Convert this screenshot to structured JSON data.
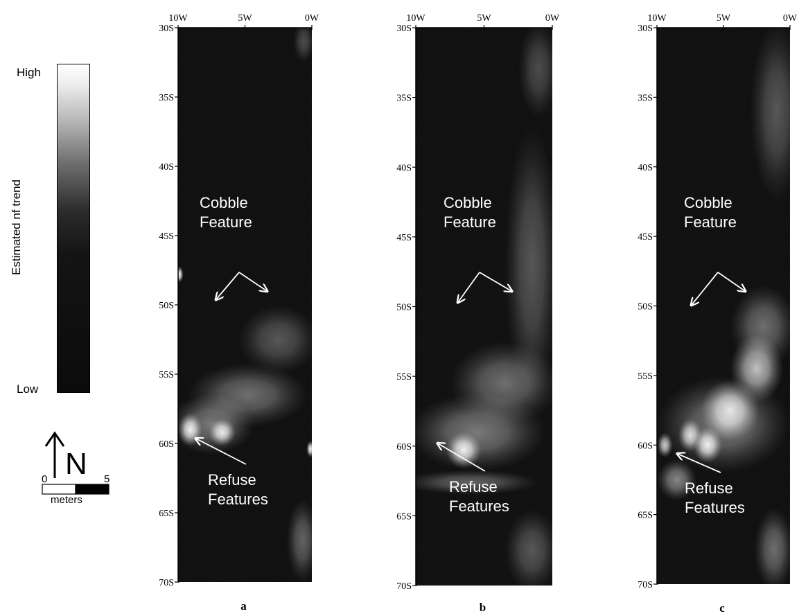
{
  "legend": {
    "high_label": "High",
    "low_label": "Low",
    "ramp_title": "Estimated nf trend",
    "ramp_colors": [
      "#ffffff",
      "#bdbdbd",
      "#6f6f6f",
      "#2b2b2b",
      "#0b0b0b"
    ],
    "north_label": "N",
    "north_icon": "north-arrow-icon",
    "scale_start": "0",
    "scale_end": "5",
    "scale_unit": "meters"
  },
  "axes": {
    "x_ticks": [
      "10W",
      "5W",
      "0W"
    ],
    "y_ticks": [
      "30S",
      "35S",
      "40S",
      "45S",
      "50S",
      "55S",
      "60S",
      "65S",
      "70S"
    ]
  },
  "panels": [
    {
      "letter": "a",
      "cobble_label": [
        "Cobble",
        "Feature"
      ],
      "refuse_label": [
        "Refuse",
        "Features"
      ],
      "bright_spots": [
        {
          "e": -9.1,
          "s": 59.0,
          "re": 0.9,
          "rs": 1.2,
          "o": 1.0
        },
        {
          "e": -6.7,
          "s": 59.2,
          "re": 1.0,
          "rs": 1.0,
          "o": 0.95
        },
        {
          "e": -7.5,
          "s": 58.6,
          "re": 3.2,
          "rs": 2.2,
          "o": 0.45
        },
        {
          "e": -4.8,
          "s": 56.5,
          "re": 4.5,
          "rs": 2.3,
          "o": 0.4
        },
        {
          "e": -2.5,
          "s": 52.5,
          "re": 3.0,
          "rs": 2.5,
          "o": 0.3
        },
        {
          "e": -9.9,
          "s": 47.8,
          "re": 0.3,
          "rs": 0.6,
          "o": 1.0
        },
        {
          "e": -0.1,
          "s": 60.4,
          "re": 0.3,
          "rs": 0.6,
          "o": 1.0
        },
        {
          "e": -0.7,
          "s": 67.0,
          "re": 1.2,
          "rs": 3.0,
          "o": 0.35
        },
        {
          "e": -0.6,
          "s": 31.0,
          "re": 0.8,
          "rs": 1.5,
          "o": 0.25
        }
      ]
    },
    {
      "letter": "b",
      "cobble_label": [
        "Cobble",
        "Feature"
      ],
      "refuse_label": [
        "Refuse",
        "Features"
      ],
      "bright_spots": [
        {
          "e": -6.5,
          "s": 60.3,
          "re": 1.3,
          "rs": 1.3,
          "o": 1.0
        },
        {
          "e": -5.5,
          "s": 59.0,
          "re": 5.0,
          "rs": 2.8,
          "o": 0.45
        },
        {
          "e": -3.5,
          "s": 55.5,
          "re": 4.0,
          "rs": 3.0,
          "o": 0.4
        },
        {
          "e": -1.5,
          "s": 47.0,
          "re": 2.0,
          "rs": 10.0,
          "o": 0.3
        },
        {
          "e": -6.0,
          "s": 62.6,
          "re": 5.0,
          "rs": 0.9,
          "o": 0.35
        },
        {
          "e": -1.0,
          "s": 33.0,
          "re": 1.5,
          "rs": 3.5,
          "o": 0.25
        },
        {
          "e": -1.5,
          "s": 67.5,
          "re": 2.0,
          "rs": 3.0,
          "o": 0.3
        }
      ]
    },
    {
      "letter": "c",
      "cobble_label": [
        "Cobble",
        "Feature"
      ],
      "refuse_label": [
        "Refuse",
        "Features"
      ],
      "bright_spots": [
        {
          "e": -7.5,
          "s": 59.3,
          "re": 0.9,
          "rs": 1.2,
          "o": 0.9
        },
        {
          "e": -6.2,
          "s": 60.0,
          "re": 1.1,
          "rs": 1.3,
          "o": 1.0
        },
        {
          "e": -9.4,
          "s": 60.0,
          "re": 0.6,
          "rs": 0.9,
          "o": 0.8
        },
        {
          "e": -4.5,
          "s": 57.5,
          "re": 2.2,
          "rs": 2.2,
          "o": 0.9
        },
        {
          "e": -2.5,
          "s": 54.5,
          "re": 2.0,
          "rs": 2.5,
          "o": 0.75
        },
        {
          "e": -5.0,
          "s": 58.5,
          "re": 5.0,
          "rs": 3.5,
          "o": 0.45
        },
        {
          "e": -2.0,
          "s": 51.5,
          "re": 2.5,
          "rs": 3.0,
          "o": 0.4
        },
        {
          "e": -1.0,
          "s": 36.0,
          "re": 2.0,
          "rs": 6.5,
          "o": 0.3
        },
        {
          "e": -8.5,
          "s": 62.5,
          "re": 1.5,
          "rs": 1.5,
          "o": 0.5
        },
        {
          "e": -1.2,
          "s": 67.5,
          "re": 1.5,
          "rs": 3.0,
          "o": 0.4
        }
      ]
    }
  ]
}
